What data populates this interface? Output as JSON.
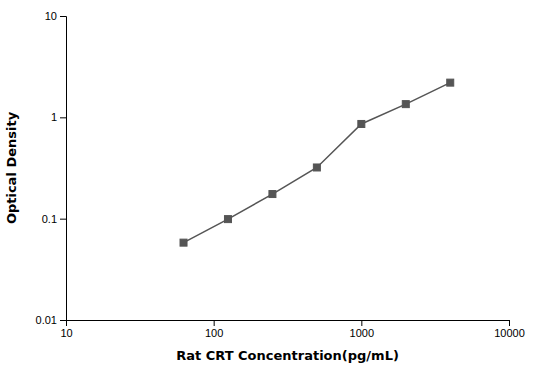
{
  "chart_data": {
    "type": "line",
    "x": [
      62.5,
      125,
      250,
      500,
      1000,
      2000,
      4000
    ],
    "series": [
      {
        "values": [
          0.058,
          0.099,
          0.175,
          0.32,
          0.86,
          1.35,
          2.2
        ],
        "color": "#555555",
        "marker": "square"
      }
    ],
    "xlabel": "Rat CRT Concentration(pg/mL)",
    "ylabel": "Optical Density",
    "xlim": [
      10,
      10000
    ],
    "ylim": [
      0.01,
      10
    ],
    "xticks": [
      10,
      100,
      1000,
      10000
    ],
    "yticks": [
      0.01,
      0.1,
      1,
      10
    ],
    "log": true
  }
}
